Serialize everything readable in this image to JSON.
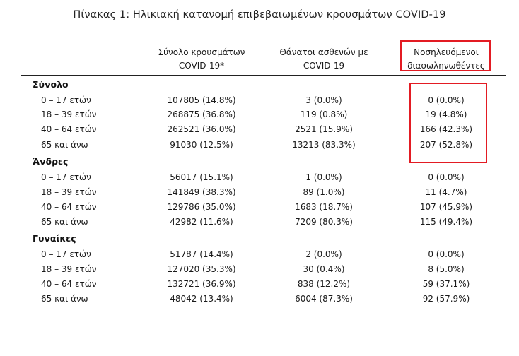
{
  "title": "Πίνακας 1: Ηλικιακή κατανομή επιβεβαιωμένων κρουσμάτων COVID-19",
  "colors": {
    "highlight": "#e31b23",
    "rule": "#222222"
  },
  "header": {
    "col1": [
      "Σύνολο κρουσμάτων",
      "COVID-19*"
    ],
    "col2": [
      "Θάνατοι ασθενών με",
      "COVID-19"
    ],
    "col3": [
      "Νοσηλευόμενοι",
      "διασωληνωθέντες"
    ]
  },
  "groups": [
    {
      "label": "Σύνολο",
      "rows": [
        {
          "age": "0 – 17 ετών",
          "cases": "107805 (14.8%)",
          "deaths": "3 (0.0%)",
          "intubated": "0 (0.0%)"
        },
        {
          "age": "18 – 39 ετών",
          "cases": "268875 (36.8%)",
          "deaths": "119 (0.8%)",
          "intubated": "19 (4.8%)"
        },
        {
          "age": "40 – 64 ετών",
          "cases": "262521 (36.0%)",
          "deaths": "2521 (15.9%)",
          "intubated": "166 (42.3%)"
        },
        {
          "age": "65 και άνω",
          "cases": "91030 (12.5%)",
          "deaths": "13213 (83.3%)",
          "intubated": "207 (52.8%)"
        }
      ]
    },
    {
      "label": "Άνδρες",
      "rows": [
        {
          "age": "0 – 17 ετών",
          "cases": "56017 (15.1%)",
          "deaths": "1 (0.0%)",
          "intubated": "0 (0.0%)"
        },
        {
          "age": "18 – 39 ετών",
          "cases": "141849 (38.3%)",
          "deaths": "89 (1.0%)",
          "intubated": "11 (4.7%)"
        },
        {
          "age": "40 – 64 ετών",
          "cases": "129786 (35.0%)",
          "deaths": "1683 (18.7%)",
          "intubated": "107 (45.9%)"
        },
        {
          "age": "65 και άνω",
          "cases": "42982 (11.6%)",
          "deaths": "7209 (80.3%)",
          "intubated": "115 (49.4%)"
        }
      ]
    },
    {
      "label": "Γυναίκες",
      "rows": [
        {
          "age": "0 – 17 ετών",
          "cases": "51787 (14.4%)",
          "deaths": "2 (0.0%)",
          "intubated": "0 (0.0%)"
        },
        {
          "age": "18 – 39 ετών",
          "cases": "127020 (35.3%)",
          "deaths": "30 (0.4%)",
          "intubated": "8 (5.0%)"
        },
        {
          "age": "40 – 64 ετών",
          "cases": "132721 (36.9%)",
          "deaths": "838 (12.2%)",
          "intubated": "59 (37.1%)"
        },
        {
          "age": "65 και άνω",
          "cases": "48042 (13.4%)",
          "deaths": "6004 (87.3%)",
          "intubated": "92 (57.9%)"
        }
      ]
    }
  ]
}
